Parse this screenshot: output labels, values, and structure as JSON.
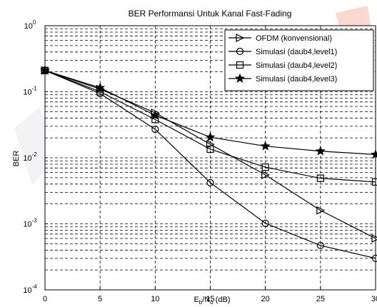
{
  "chart_data": {
    "type": "line",
    "title": "BER Performansi Untuk Kanal Fast-Fading",
    "xlabel": {
      "main": "E",
      "sub1": "b",
      "slash": "/N",
      "sub2": "o",
      "unit": " (dB)"
    },
    "ylabel": "BER",
    "x_ticks": [
      "0",
      "5",
      "10",
      "15",
      "20",
      "25",
      "30"
    ],
    "y_ticks": [
      {
        "base": "10",
        "exp": "0",
        "value": 1
      },
      {
        "base": "10",
        "exp": "-1",
        "value": 0.1
      },
      {
        "base": "10",
        "exp": "-2",
        "value": 0.01
      },
      {
        "base": "10",
        "exp": "-3",
        "value": 0.001
      },
      {
        "base": "10",
        "exp": "-4",
        "value": 0.0001
      }
    ],
    "xlim": [
      0,
      30
    ],
    "ylim": [
      0.0001,
      1
    ],
    "y_scale": "log",
    "grid": true,
    "legend_position": "top-right",
    "x": [
      0,
      5,
      10,
      15,
      20,
      25,
      30
    ],
    "series": [
      {
        "name": "OFDM (konvensional)",
        "marker": "triangle-right",
        "values": [
          0.21,
          0.11,
          0.048,
          0.016,
          0.0055,
          0.0016,
          0.0006
        ]
      },
      {
        "name": "Simulasi (daub4,level1)",
        "marker": "circle",
        "values": [
          0.21,
          0.094,
          0.027,
          0.0042,
          0.00102,
          0.00047,
          0.0003
        ]
      },
      {
        "name": "Simulasi (daub4,level2)",
        "marker": "square",
        "values": [
          0.21,
          0.1,
          0.038,
          0.0135,
          0.0072,
          0.0049,
          0.0043
        ]
      },
      {
        "name": "Simulasi (daub4,level3)",
        "marker": "star",
        "values": [
          0.21,
          0.115,
          0.044,
          0.0205,
          0.015,
          0.0126,
          0.0112
        ]
      }
    ]
  }
}
